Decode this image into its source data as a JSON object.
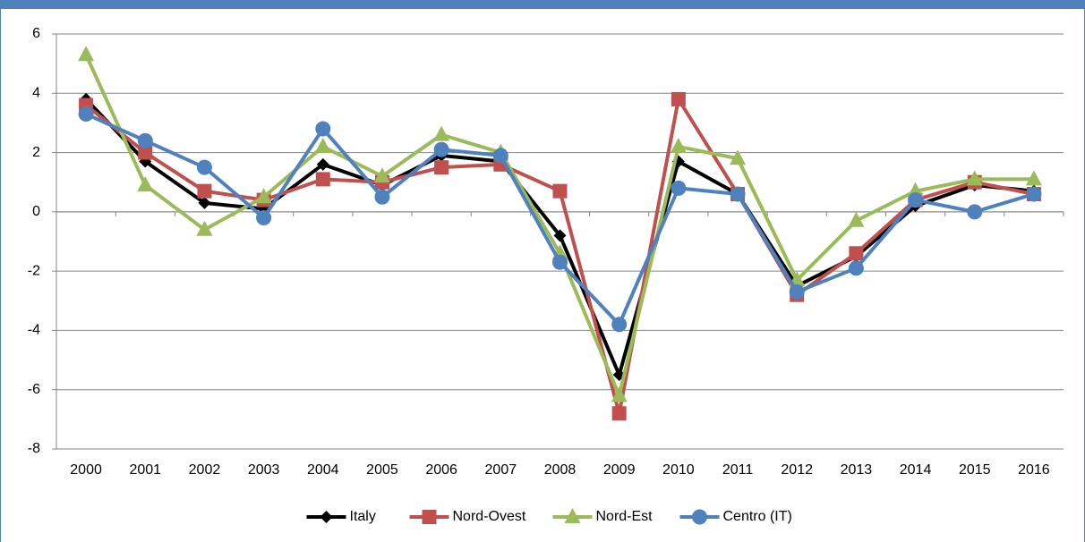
{
  "chart_data": {
    "type": "line",
    "categories": [
      "2000",
      "2001",
      "2002",
      "2003",
      "2004",
      "2005",
      "2006",
      "2007",
      "2008",
      "2009",
      "2010",
      "2011",
      "2012",
      "2013",
      "2014",
      "2015",
      "2016"
    ],
    "series": [
      {
        "name": "Italy",
        "color": "#000000",
        "marker": "diamond",
        "values": [
          3.8,
          1.7,
          0.3,
          0.1,
          1.6,
          0.9,
          1.9,
          1.7,
          -0.8,
          -5.5,
          1.7,
          0.6,
          -2.5,
          -1.5,
          0.2,
          0.9,
          0.7
        ]
      },
      {
        "name": "Nord-Ovest",
        "color": "#c0504d",
        "marker": "square",
        "values": [
          3.6,
          2.0,
          0.7,
          0.4,
          1.1,
          1.0,
          1.5,
          1.6,
          0.7,
          -6.8,
          3.8,
          0.6,
          -2.8,
          -1.4,
          0.4,
          1.0,
          0.6
        ]
      },
      {
        "name": "Nord-Est",
        "color": "#9bbb59",
        "marker": "triangle",
        "values": [
          5.3,
          0.9,
          -0.6,
          0.5,
          2.2,
          1.2,
          2.6,
          2.0,
          -1.4,
          -6.2,
          2.2,
          1.8,
          -2.3,
          -0.3,
          0.7,
          1.1,
          1.1
        ]
      },
      {
        "name": "Centro (IT)",
        "color": "#4f81bd",
        "marker": "circle",
        "values": [
          3.3,
          2.4,
          1.5,
          -0.2,
          2.8,
          0.5,
          2.1,
          1.9,
          -1.7,
          -3.8,
          0.8,
          0.6,
          -2.7,
          -1.9,
          0.4,
          0.0,
          0.6
        ]
      }
    ],
    "ylim": [
      -8,
      6
    ],
    "yticks": [
      -8,
      -6,
      -4,
      -2,
      0,
      2,
      4,
      6
    ],
    "grid": true,
    "legend": "bottom"
  }
}
